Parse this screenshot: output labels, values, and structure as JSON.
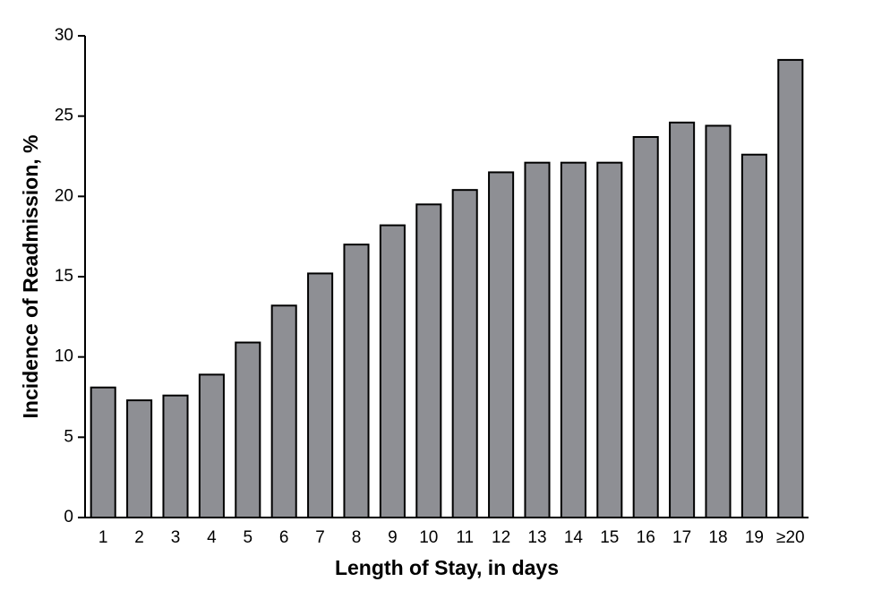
{
  "chart_data": {
    "type": "bar",
    "x_label": "Length of Stay, in days",
    "y_label": "Incidence of Readmission, %",
    "categories": [
      "1",
      "2",
      "3",
      "4",
      "5",
      "6",
      "7",
      "8",
      "9",
      "10",
      "11",
      "12",
      "13",
      "14",
      "15",
      "16",
      "17",
      "18",
      "19",
      "≥20"
    ],
    "values": [
      8.1,
      7.3,
      7.6,
      8.9,
      10.9,
      13.2,
      15.2,
      17.0,
      18.2,
      19.5,
      20.4,
      21.5,
      22.1,
      22.1,
      22.1,
      23.7,
      24.6,
      24.4,
      22.6,
      28.5
    ],
    "color": "#8e8f94",
    "ylim": [
      0,
      30
    ],
    "yticks": [
      0,
      5,
      10,
      15,
      20,
      25,
      30
    ],
    "grid": false
  }
}
